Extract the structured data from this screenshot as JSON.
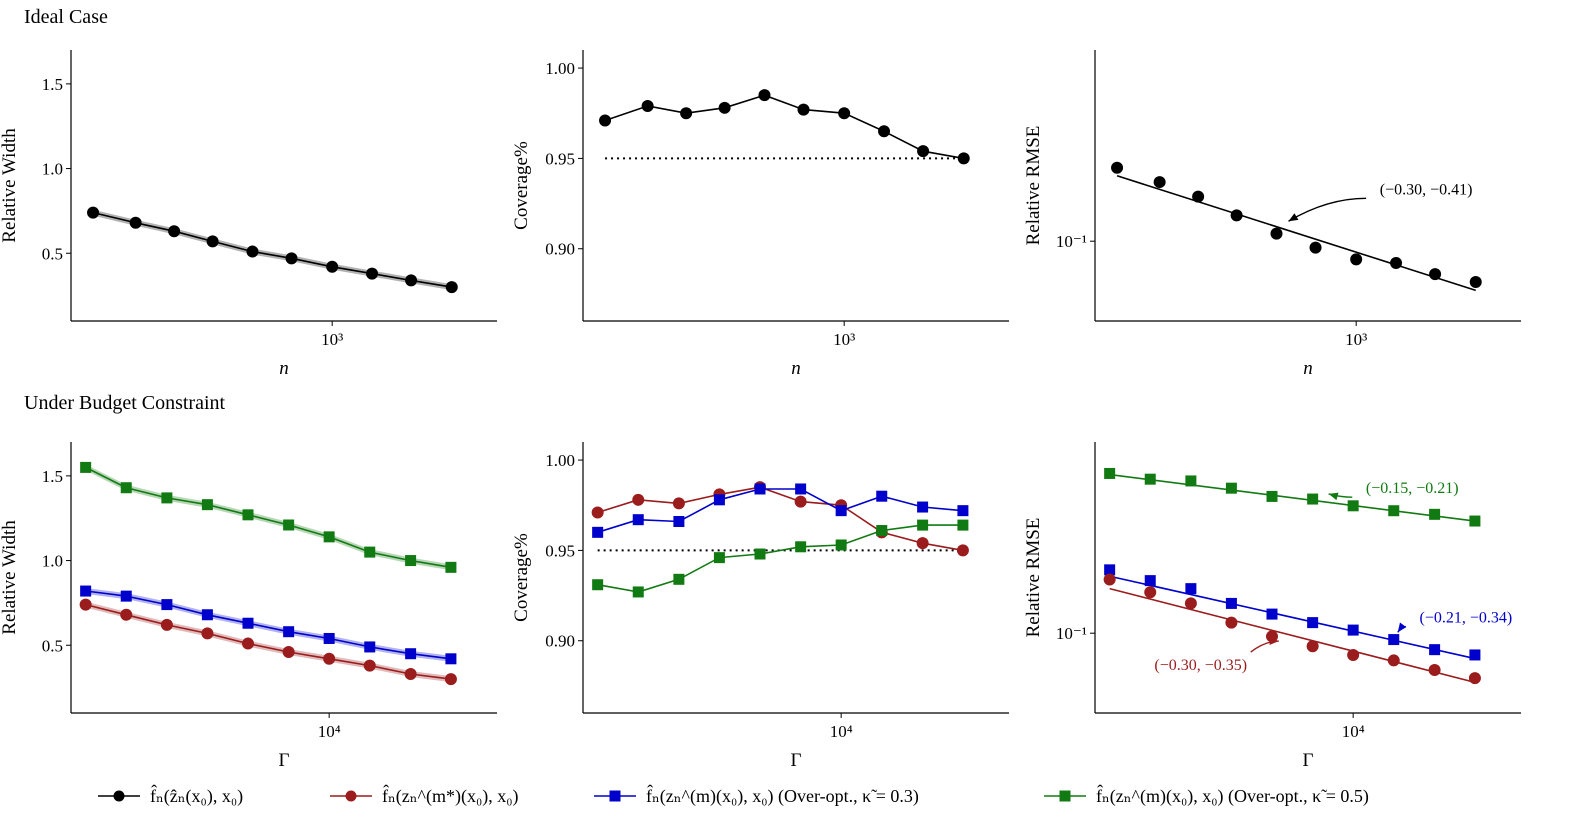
{
  "sections": {
    "top_title": "Ideal Case",
    "bottom_title": "Under Budget Constraint"
  },
  "legend": [
    {
      "label": "f̂ₙ(ẑₙ(x₀), x₀)",
      "color": "#000000",
      "marker": "circle"
    },
    {
      "label": "f̂ₙ(zₙ^(m*)(x₀), x₀)",
      "color": "#9b1c1c",
      "marker": "circle"
    },
    {
      "label": "f̂ₙ(zₙ^(m)(x₀), x₀) (Over-opt., κ̃ = 0.3)",
      "color": "#0000cc",
      "marker": "square"
    },
    {
      "label": "f̂ₙ(zₙ^(m)(x₀), x₀) (Over-opt., κ̃ = 0.5)",
      "color": "#127a12",
      "marker": "square"
    }
  ],
  "chart_data": [
    {
      "id": "top-width",
      "type": "line",
      "xscale": "log",
      "yscale": "linear",
      "xlabel": "n",
      "ylabel": "Relative Width",
      "xlim": [
        220,
        2600
      ],
      "ylim": [
        0.1,
        1.7
      ],
      "xticks": [
        {
          "v": 1000,
          "label": "10³"
        }
      ],
      "yticks": [
        {
          "v": 0.5,
          "label": "0.5"
        },
        {
          "v": 1.0,
          "label": "1.0"
        },
        {
          "v": 1.5,
          "label": "1.5"
        }
      ],
      "x": [
        250,
        320,
        400,
        500,
        630,
        790,
        1000,
        1260,
        1580,
        2000
      ],
      "series": [
        {
          "name": "f̂ₙ(ẑₙ(x₀), x₀)",
          "color": "#000000",
          "marker": "circle",
          "band": true,
          "values": [
            0.74,
            0.68,
            0.63,
            0.57,
            0.51,
            0.47,
            0.42,
            0.38,
            0.34,
            0.3
          ]
        }
      ]
    },
    {
      "id": "top-coverage",
      "type": "line",
      "xscale": "log",
      "yscale": "linear",
      "xlabel": "n",
      "ylabel": "Coverage%",
      "xlim": [
        220,
        2600
      ],
      "ylim": [
        0.86,
        1.01
      ],
      "xticks": [
        {
          "v": 1000,
          "label": "10³"
        }
      ],
      "yticks": [
        {
          "v": 0.9,
          "label": "0.90"
        },
        {
          "v": 0.95,
          "label": "0.95"
        },
        {
          "v": 1.0,
          "label": "1.00"
        }
      ],
      "reference_line": 0.95,
      "x": [
        250,
        320,
        400,
        500,
        630,
        790,
        1000,
        1260,
        1580,
        2000
      ],
      "series": [
        {
          "name": "f̂ₙ(ẑₙ(x₀), x₀)",
          "color": "#000000",
          "marker": "circle",
          "values": [
            0.971,
            0.979,
            0.975,
            0.978,
            0.985,
            0.977,
            0.975,
            0.965,
            0.954,
            0.95
          ]
        }
      ]
    },
    {
      "id": "top-rmse",
      "type": "scatter",
      "xscale": "log",
      "yscale": "log",
      "xlabel": "n",
      "ylabel": "Relative RMSE",
      "xlim": [
        220,
        2600
      ],
      "ylim": [
        0.06,
        0.34
      ],
      "xticks": [
        {
          "v": 1000,
          "label": "10³"
        }
      ],
      "yticks": [
        {
          "v": 0.1,
          "label": "10⁻¹"
        }
      ],
      "x": [
        250,
        320,
        400,
        500,
        630,
        790,
        1000,
        1260,
        1580,
        2000
      ],
      "series": [
        {
          "name": "f̂ₙ(ẑₙ(x₀), x₀)",
          "color": "#000000",
          "marker": "circle",
          "values": [
            0.16,
            0.146,
            0.133,
            0.118,
            0.105,
            0.096,
            0.089,
            0.087,
            0.081,
            0.077
          ],
          "fit": [
            0.152,
            0.073
          ],
          "annotation": {
            "text": "(−0.30, −0.41)",
            "at_x": 660,
            "text_x": 1500,
            "text_y": 0.135
          }
        }
      ]
    },
    {
      "id": "bottom-width",
      "type": "line",
      "xscale": "log",
      "yscale": "linear",
      "xlabel": "Γ",
      "ylabel": "Relative Width",
      "xlim": [
        2300,
        26000
      ],
      "ylim": [
        0.1,
        1.7
      ],
      "xticks": [
        {
          "v": 10000,
          "label": "10⁴"
        }
      ],
      "yticks": [
        {
          "v": 0.5,
          "label": "0.5"
        },
        {
          "v": 1.0,
          "label": "1.0"
        },
        {
          "v": 1.5,
          "label": "1.5"
        }
      ],
      "x": [
        2500,
        3150,
        3970,
        5000,
        6300,
        7940,
        10000,
        12600,
        15900,
        20000
      ],
      "series": [
        {
          "name": "κ̃ = 0.5",
          "color": "#127a12",
          "marker": "square",
          "band": true,
          "values": [
            1.55,
            1.43,
            1.37,
            1.33,
            1.27,
            1.21,
            1.14,
            1.05,
            1.0,
            0.96
          ]
        },
        {
          "name": "κ̃ = 0.3",
          "color": "#0000cc",
          "marker": "square",
          "band": true,
          "values": [
            0.82,
            0.79,
            0.74,
            0.68,
            0.63,
            0.58,
            0.54,
            0.49,
            0.45,
            0.42
          ]
        },
        {
          "name": "m*",
          "color": "#9b1c1c",
          "marker": "circle",
          "band": true,
          "values": [
            0.74,
            0.68,
            0.62,
            0.57,
            0.51,
            0.46,
            0.42,
            0.38,
            0.33,
            0.3
          ]
        }
      ]
    },
    {
      "id": "bottom-coverage",
      "type": "line",
      "xscale": "log",
      "yscale": "linear",
      "xlabel": "Γ",
      "ylabel": "Coverage%",
      "xlim": [
        2300,
        26000
      ],
      "ylim": [
        0.86,
        1.01
      ],
      "xticks": [
        {
          "v": 10000,
          "label": "10⁴"
        }
      ],
      "yticks": [
        {
          "v": 0.9,
          "label": "0.90"
        },
        {
          "v": 0.95,
          "label": "0.95"
        },
        {
          "v": 1.0,
          "label": "1.00"
        }
      ],
      "reference_line": 0.95,
      "x": [
        2500,
        3150,
        3970,
        5000,
        6300,
        7940,
        10000,
        12600,
        15900,
        20000
      ],
      "series": [
        {
          "name": "m*",
          "color": "#9b1c1c",
          "marker": "circle",
          "values": [
            0.971,
            0.978,
            0.976,
            0.981,
            0.985,
            0.977,
            0.975,
            0.96,
            0.954,
            0.95
          ]
        },
        {
          "name": "κ̃ = 0.3",
          "color": "#0000cc",
          "marker": "square",
          "values": [
            0.96,
            0.967,
            0.966,
            0.978,
            0.984,
            0.984,
            0.972,
            0.98,
            0.974,
            0.972
          ]
        },
        {
          "name": "κ̃ = 0.5",
          "color": "#127a12",
          "marker": "square",
          "values": [
            0.931,
            0.927,
            0.934,
            0.946,
            0.948,
            0.952,
            0.953,
            0.961,
            0.964,
            0.964
          ]
        }
      ]
    },
    {
      "id": "bottom-rmse",
      "type": "scatter",
      "xscale": "log",
      "yscale": "log",
      "xlabel": "Γ",
      "ylabel": "Relative RMSE",
      "xlim": [
        2300,
        26000
      ],
      "ylim": [
        0.06,
        0.34
      ],
      "xticks": [
        {
          "v": 10000,
          "label": "10⁴"
        }
      ],
      "yticks": [
        {
          "v": 0.1,
          "label": "10⁻¹"
        }
      ],
      "x": [
        2500,
        3150,
        3970,
        5000,
        6300,
        7940,
        10000,
        12600,
        15900,
        20000
      ],
      "series": [
        {
          "name": "κ̃ = 0.5",
          "color": "#127a12",
          "marker": "square",
          "values": [
            0.278,
            0.268,
            0.265,
            0.253,
            0.24,
            0.236,
            0.226,
            0.219,
            0.214,
            0.205
          ],
          "fit": [
            0.276,
            0.205
          ],
          "annotation": {
            "text": "(−0.15, −0.21)",
            "at_x": 8500,
            "text_x": 14000,
            "text_y": 0.245
          }
        },
        {
          "name": "κ̃ = 0.3",
          "color": "#0000cc",
          "marker": "square",
          "values": [
            0.15,
            0.14,
            0.133,
            0.121,
            0.113,
            0.107,
            0.102,
            0.096,
            0.09,
            0.087
          ],
          "fit": [
            0.144,
            0.085
          ],
          "annotation": {
            "text": "(−0.21, −0.34)",
            "at_x": 12600,
            "text_x": 19000,
            "text_y": 0.107
          }
        },
        {
          "name": "m*",
          "color": "#9b1c1c",
          "marker": "circle",
          "values": [
            0.141,
            0.13,
            0.121,
            0.107,
            0.098,
            0.092,
            0.087,
            0.084,
            0.079,
            0.075
          ],
          "fit": [
            0.133,
            0.073
          ],
          "annotation": {
            "text": "(−0.30, −0.35)",
            "at_x": 6700,
            "text_x": 4200,
            "text_y": 0.079
          }
        }
      ]
    }
  ]
}
